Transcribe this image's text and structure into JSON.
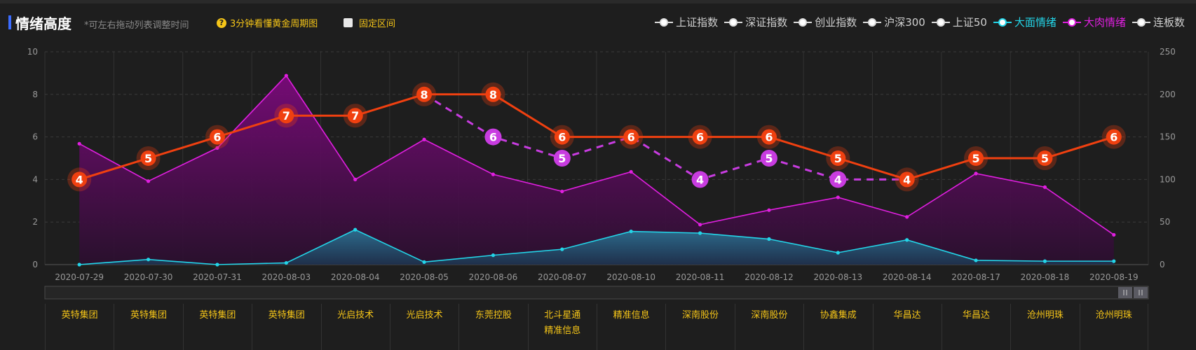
{
  "header": {
    "title": "情绪高度",
    "hint": "*可左右拖动列表调整时间",
    "cycle_link": "3分钟看懂黄金周期图",
    "fix_range": "固定区间"
  },
  "legend": [
    {
      "label": "上证指数",
      "color": "#dddddd",
      "icon": "circle-line-marker"
    },
    {
      "label": "深证指数",
      "color": "#dddddd",
      "icon": "circle-line-marker"
    },
    {
      "label": "创业指数",
      "color": "#dddddd",
      "icon": "circle-line-marker"
    },
    {
      "label": "沪深300",
      "color": "#dddddd",
      "icon": "circle-line-marker"
    },
    {
      "label": "上证50",
      "color": "#dddddd",
      "icon": "circle-line-marker"
    },
    {
      "label": "大面情绪",
      "color": "#23d5e8",
      "icon": "circle-line-marker"
    },
    {
      "label": "大肉情绪",
      "color": "#e01fe0",
      "icon": "circle-line-marker"
    },
    {
      "label": "连板数",
      "color": "#dddddd",
      "icon": "circle-line-marker"
    }
  ],
  "colors": {
    "background": "#1e1e1e",
    "height_line": "#f04010",
    "height_marker": "#f04010",
    "alt_marker": "#c83ce0",
    "meat": "#e01fe0",
    "noodle": "#23d5e8",
    "stock_text": "#f5c518"
  },
  "chart_data": {
    "type": "line",
    "x": [
      "2020-07-29",
      "2020-07-30",
      "2020-07-31",
      "2020-08-03",
      "2020-08-04",
      "2020-08-05",
      "2020-08-06",
      "2020-08-07",
      "2020-08-10",
      "2020-08-11",
      "2020-08-12",
      "2020-08-13",
      "2020-08-14",
      "2020-08-17",
      "2020-08-18",
      "2020-08-19"
    ],
    "y_left_ticks": [
      0,
      2,
      4,
      6,
      8,
      10
    ],
    "y_right_ticks": [
      0,
      50,
      100,
      150,
      200,
      250
    ],
    "ylim_left": [
      0,
      10
    ],
    "ylim_right": [
      0,
      250
    ],
    "grid": true,
    "series": [
      {
        "axis": "left",
        "style": "solid-labeled",
        "values": [
          4,
          5,
          6,
          7,
          7,
          8,
          8,
          6,
          6,
          6,
          6,
          5,
          4,
          5,
          5,
          6
        ]
      },
      {
        "axis": "left",
        "style": "dashed-labeled",
        "values": [
          null,
          null,
          null,
          null,
          null,
          8,
          6,
          5,
          6,
          4,
          5,
          4,
          4,
          null,
          null,
          null
        ]
      },
      {
        "name": "大肉情绪",
        "axis": "right",
        "style": "area",
        "values": [
          142,
          98,
          137,
          222,
          100,
          147,
          106,
          86,
          109,
          47,
          64,
          79,
          56,
          107,
          91,
          35
        ]
      },
      {
        "name": "大面情绪",
        "axis": "right",
        "style": "area",
        "values": [
          0,
          6,
          0,
          2,
          41,
          3,
          11,
          18,
          39,
          37,
          30,
          14,
          29,
          5,
          4,
          4
        ]
      }
    ]
  },
  "stocks": [
    [
      "英特集团"
    ],
    [
      "英特集团"
    ],
    [
      "英特集团"
    ],
    [
      "英特集团"
    ],
    [
      "光启技术"
    ],
    [
      "光启技术"
    ],
    [
      "东莞控股"
    ],
    [
      "北斗星通",
      "精准信息"
    ],
    [
      "精准信息"
    ],
    [
      "深南股份"
    ],
    [
      "深南股份"
    ],
    [
      "协鑫集成"
    ],
    [
      "华昌达"
    ],
    [
      "华昌达"
    ],
    [
      "沧州明珠"
    ],
    [
      "沧州明珠"
    ]
  ],
  "slider": {
    "handle_icon": "pause-grip-icon"
  }
}
